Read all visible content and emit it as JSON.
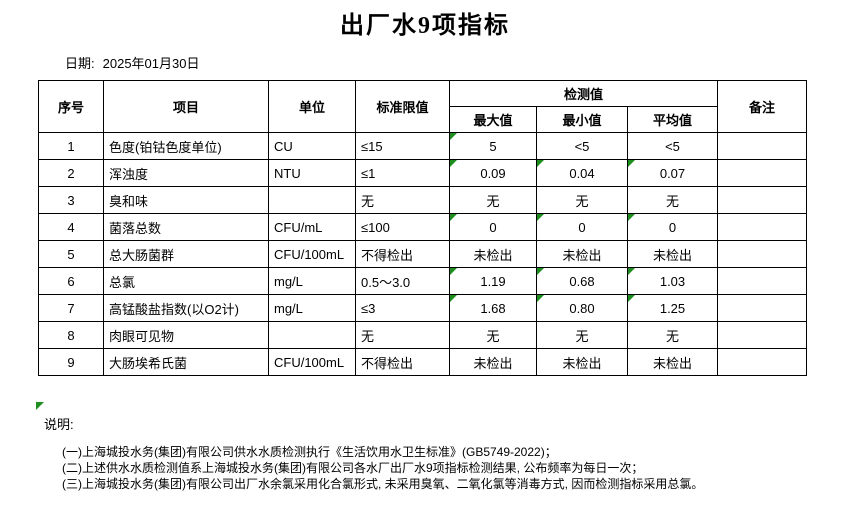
{
  "page": {
    "title": "出厂水9项指标"
  },
  "date": {
    "label": "日期:",
    "value": "2025年01月30日"
  },
  "table": {
    "headers": {
      "no": "序号",
      "item": "项目",
      "unit": "单位",
      "limit": "标准限值",
      "detection": "检测值",
      "max": "最大值",
      "min": "最小值",
      "avg": "平均值",
      "remark": "备注"
    },
    "rows": [
      {
        "no": "1",
        "item": "色度(铂钴色度单位)",
        "unit": "CU",
        "limit": "≤15",
        "max": "5",
        "min": "<5",
        "avg": "<5",
        "remark": "",
        "flags": [
          "max"
        ]
      },
      {
        "no": "2",
        "item": "浑浊度",
        "unit": "NTU",
        "limit": "≤1",
        "max": "0.09",
        "min": "0.04",
        "avg": "0.07",
        "remark": "",
        "flags": [
          "max",
          "min",
          "avg"
        ]
      },
      {
        "no": "3",
        "item": "臭和味",
        "unit": "",
        "limit": "无",
        "max": "无",
        "min": "无",
        "avg": "无",
        "remark": "",
        "flags": []
      },
      {
        "no": "4",
        "item": "菌落总数",
        "unit": "CFU/mL",
        "limit": "≤100",
        "max": "0",
        "min": "0",
        "avg": "0",
        "remark": "",
        "flags": [
          "max",
          "min",
          "avg"
        ]
      },
      {
        "no": "5",
        "item": "总大肠菌群",
        "unit": "CFU/100mL",
        "limit": "不得检出",
        "max": "未检出",
        "min": "未检出",
        "avg": "未检出",
        "remark": "",
        "flags": []
      },
      {
        "no": "6",
        "item": "总氯",
        "unit": "mg/L",
        "limit": "0.5～3.0",
        "max": "1.19",
        "min": "0.68",
        "avg": "1.03",
        "remark": "",
        "flags": [
          "max",
          "min",
          "avg"
        ]
      },
      {
        "no": "7",
        "item": "高锰酸盐指数(以O2计)",
        "unit": "mg/L",
        "limit": "≤3",
        "max": "1.68",
        "min": "0.80",
        "avg": "1.25",
        "remark": "",
        "flags": [
          "max",
          "min",
          "avg"
        ]
      },
      {
        "no": "8",
        "item": "肉眼可见物",
        "unit": "",
        "limit": "无",
        "max": "无",
        "min": "无",
        "avg": "无",
        "remark": "",
        "flags": []
      },
      {
        "no": "9",
        "item": "大肠埃希氏菌",
        "unit": "CFU/100mL",
        "limit": "不得检出",
        "max": "未检出",
        "min": "未检出",
        "avg": "未检出",
        "remark": "",
        "flags": []
      }
    ]
  },
  "notes": {
    "label": "说明:",
    "items": [
      "(一)上海城投水务(集团)有限公司供水水质检测执行《生活饮用水卫生标准》(GB5749-2022)；",
      "(二)上述供水水质检测值系上海城投水务(集团)有限公司各水厂出厂水9项指标检测结果, 公布频率为每日一次；",
      "(三)上海城投水务(集团)有限公司出厂水余氯采用化合氯形式, 未采用臭氧、二氧化氯等消毒方式, 因而检测指标采用总氯。"
    ]
  },
  "colors": {
    "flag_green": "#1e8f1e",
    "border": "#000000",
    "background": "#ffffff"
  }
}
